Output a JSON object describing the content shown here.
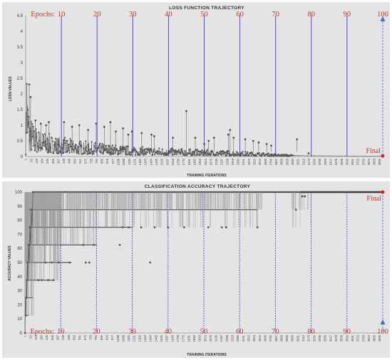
{
  "chart_data": [
    {
      "type": "line",
      "title": "LOSS FUNCTION TRAJECTORY",
      "xlabel": "TRAINING ITERATIONS",
      "ylabel": "LOSS VALUES",
      "ylim": [
        0,
        4.5
      ],
      "yticks": [
        "0",
        "0.5",
        "1",
        "1.5",
        "2",
        "2.5",
        "3",
        "3.5",
        "4",
        "4.5"
      ],
      "xticks": [
        "1",
        "62",
        "123",
        "184",
        "245",
        "306",
        "367",
        "428",
        "489",
        "550",
        "611",
        "672",
        "733",
        "794",
        "855",
        "916",
        "977",
        "1038",
        "1099",
        "1160",
        "1221",
        "1282",
        "1343",
        "1404",
        "1465",
        "1526",
        "1587",
        "1648",
        "1709",
        "1770",
        "1831",
        "1892",
        "1953",
        "2014",
        "2075",
        "2136",
        "2197",
        "2258",
        "2319",
        "2380",
        "2441",
        "2502",
        "2563",
        "2624",
        "2685",
        "2746",
        "2807",
        "2868",
        "2929",
        "2990",
        "3051",
        "3112",
        "3173",
        "3234",
        "3295",
        "3356",
        "3417",
        "3478",
        "3539",
        "3600",
        "3661",
        "3722",
        "3783",
        "3844",
        "3905",
        "3966"
      ],
      "epoch_prefix": "Epochs:",
      "epoch_labels": [
        "10",
        "20",
        "30",
        "40",
        "50",
        "60",
        "70",
        "80",
        "90",
        "100"
      ],
      "epoch_boundaries": [
        400,
        800,
        1200,
        1600,
        2000,
        2400,
        2800,
        3200,
        3600,
        4000
      ],
      "final_label": "Final",
      "series_color": "#555555",
      "epoch_line_color": "#3b3bd6",
      "final_marker_color": "#d81e1e",
      "arrow_color": "#3a6fd8",
      "x_max": 4000,
      "envelope": [
        [
          1,
          0.4
        ],
        [
          6,
          2.4
        ],
        [
          10,
          4.1
        ],
        [
          15,
          3.1
        ],
        [
          20,
          2.5
        ],
        [
          30,
          1.8
        ],
        [
          45,
          1.5
        ],
        [
          60,
          1.25
        ],
        [
          90,
          1.05
        ],
        [
          130,
          0.9
        ],
        [
          200,
          0.8
        ],
        [
          300,
          0.7
        ],
        [
          450,
          0.6
        ],
        [
          600,
          0.52
        ],
        [
          800,
          0.45
        ],
        [
          1000,
          0.38
        ],
        [
          1200,
          0.33
        ],
        [
          1400,
          0.3
        ],
        [
          1600,
          0.27
        ],
        [
          1800,
          0.25
        ],
        [
          2000,
          0.22
        ],
        [
          2200,
          0.2
        ],
        [
          2400,
          0.17
        ],
        [
          2600,
          0.14
        ],
        [
          2800,
          0.08
        ],
        [
          3000,
          0.06
        ],
        [
          3400,
          0.04
        ],
        [
          3800,
          0.03
        ],
        [
          4000,
          0.02
        ]
      ],
      "spikes": [
        [
          40,
          2.3
        ],
        [
          55,
          1.9
        ],
        [
          110,
          1.15
        ],
        [
          170,
          1.05
        ],
        [
          230,
          1.0
        ],
        [
          260,
          1.1
        ],
        [
          430,
          1.1
        ],
        [
          520,
          0.95
        ],
        [
          600,
          1.0
        ],
        [
          700,
          0.85
        ],
        [
          790,
          1.05
        ],
        [
          880,
          0.95
        ],
        [
          950,
          1.1
        ],
        [
          1010,
          0.8
        ],
        [
          1090,
          0.9
        ],
        [
          1150,
          0.7
        ],
        [
          1190,
          0.8
        ],
        [
          1300,
          0.75
        ],
        [
          1410,
          0.7
        ],
        [
          1440,
          0.65
        ],
        [
          1650,
          0.6
        ],
        [
          1800,
          1.45
        ],
        [
          1900,
          0.6
        ],
        [
          2000,
          0.4
        ],
        [
          2050,
          0.5
        ],
        [
          2110,
          0.6
        ],
        [
          2270,
          0.7
        ],
        [
          2290,
          0.85
        ],
        [
          2330,
          0.6
        ],
        [
          2460,
          0.55
        ],
        [
          2550,
          0.5
        ],
        [
          2610,
          0.45
        ],
        [
          2700,
          0.4
        ],
        [
          2750,
          0.35
        ],
        [
          3040,
          0.55
        ],
        [
          3170,
          0.1
        ]
      ]
    },
    {
      "type": "line",
      "title": "CLASSIFICATION ACCURACY TRAJECTORY",
      "xlabel": "TRAINING ITERATIONS",
      "ylabel": "ACCURACY VALUES",
      "ylim": [
        0,
        100
      ],
      "yticks": [
        "0",
        "10",
        "20",
        "30",
        "40",
        "50",
        "60",
        "70",
        "80",
        "90",
        "100"
      ],
      "xticks": [
        "1",
        "62",
        "123",
        "184",
        "245",
        "306",
        "367",
        "428",
        "489",
        "550",
        "611",
        "672",
        "733",
        "794",
        "855",
        "916",
        "977",
        "1038",
        "1099",
        "1160",
        "1221",
        "1282",
        "1343",
        "1404",
        "1465",
        "1526",
        "1587",
        "1648",
        "1709",
        "1770",
        "1831",
        "1892",
        "1953",
        "2014",
        "2075",
        "2136",
        "2197",
        "2258",
        "2319",
        "2380",
        "2441",
        "2502",
        "2563",
        "2624",
        "2685",
        "2746",
        "2807",
        "2868",
        "2929",
        "2990",
        "3051",
        "3112",
        "3173",
        "3234",
        "3295",
        "3356",
        "3417",
        "3478",
        "3539",
        "3600",
        "3661",
        "3722",
        "3783",
        "3844",
        "3905",
        "3966"
      ],
      "epoch_prefix": "Epochs:",
      "epoch_labels": [
        "10",
        "20",
        "30",
        "40",
        "50",
        "60",
        "70",
        "80",
        "90",
        "100"
      ],
      "epoch_boundaries": [
        400,
        800,
        1200,
        1600,
        2000,
        2400,
        2800,
        3200,
        3600,
        4000
      ],
      "final_label": "Final",
      "series_color": "#555555",
      "epoch_line_color": "#3b3bd6",
      "final_marker_color": "#d81e1e",
      "arrow_color": "#3a6fd8",
      "x_max": 4000,
      "levels": [
        12.5,
        25,
        37.5,
        50,
        62.5,
        75,
        87.5,
        100
      ],
      "level_segments": [
        {
          "y": 100,
          "from": 90,
          "to": 4000
        },
        {
          "y": 87.5,
          "from": 40,
          "to": 2600
        },
        {
          "y": 75,
          "from": 40,
          "to": 1200
        },
        {
          "y": 62.5,
          "from": 35,
          "to": 800
        },
        {
          "y": 50,
          "from": 30,
          "to": 520
        },
        {
          "y": 37.5,
          "from": 20,
          "to": 320
        },
        {
          "y": 25,
          "from": 10,
          "to": 90
        },
        {
          "y": 12.5,
          "from": 1,
          "to": 40
        }
      ],
      "markers": [
        [
          1,
          0
        ],
        [
          8,
          12.5
        ],
        [
          14,
          25
        ],
        [
          20,
          37.5
        ],
        [
          28,
          50
        ],
        [
          40,
          62.5
        ],
        [
          55,
          75
        ],
        [
          70,
          87.5
        ],
        [
          90,
          100
        ],
        [
          150,
          37.5
        ],
        [
          190,
          37.5
        ],
        [
          260,
          37.5
        ],
        [
          320,
          37.5
        ],
        [
          230,
          50
        ],
        [
          300,
          50
        ],
        [
          380,
          50
        ],
        [
          500,
          50
        ],
        [
          680,
          50
        ],
        [
          720,
          50
        ],
        [
          650,
          62.5
        ],
        [
          770,
          62.5
        ],
        [
          1060,
          62.5
        ],
        [
          1400,
          50
        ],
        [
          1090,
          75
        ],
        [
          1160,
          75
        ],
        [
          1300,
          75
        ],
        [
          1450,
          75
        ],
        [
          1600,
          75
        ],
        [
          1780,
          75
        ],
        [
          2050,
          75
        ],
        [
          2200,
          75
        ],
        [
          2250,
          75
        ],
        [
          2600,
          75
        ],
        [
          3030,
          87.5
        ],
        [
          3100,
          97
        ],
        [
          3130,
          97
        ]
      ]
    }
  ]
}
